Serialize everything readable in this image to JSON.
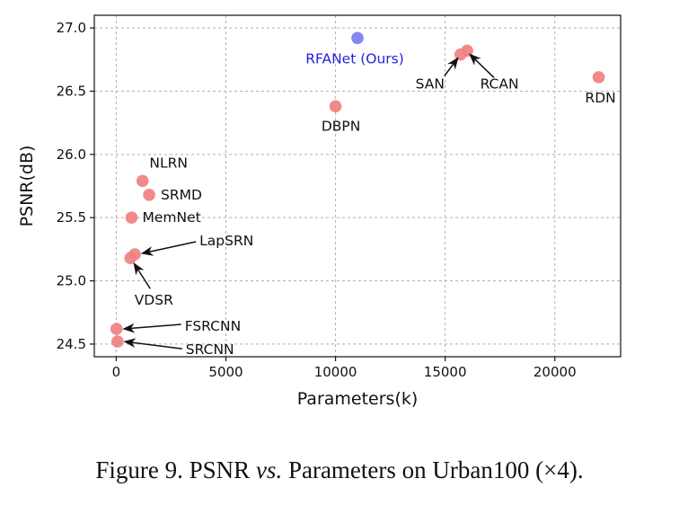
{
  "chart_data": {
    "type": "scatter",
    "xlabel": "Parameters(k)",
    "ylabel": "PSNR(dB)",
    "xlim": [
      -1000,
      23000
    ],
    "ylim": [
      24.4,
      27.1
    ],
    "xticks": [
      "0",
      "5000",
      "10000",
      "15000",
      "20000"
    ],
    "yticks": [
      "24.5",
      "25.0",
      "25.5",
      "26.0",
      "26.5",
      "27.0"
    ],
    "grid": true,
    "points": [
      {
        "label": "RFANet (Ours)",
        "x": 11000,
        "y": 26.92,
        "color": "#7b7cf0",
        "label_color": "#2222dd"
      },
      {
        "label": "RDN",
        "x": 22000,
        "y": 26.61,
        "color": "#f08080",
        "label_color": "#111111"
      },
      {
        "label": "RCAN",
        "x": 16000,
        "y": 26.82,
        "color": "#f08080",
        "label_color": "#111111"
      },
      {
        "label": "SAN",
        "x": 15700,
        "y": 26.79,
        "color": "#f08080",
        "label_color": "#111111"
      },
      {
        "label": "DBPN",
        "x": 10000,
        "y": 26.38,
        "color": "#f08080",
        "label_color": "#111111"
      },
      {
        "label": "NLRN",
        "x": 1200,
        "y": 25.79,
        "color": "#f08080",
        "label_color": "#111111"
      },
      {
        "label": "SRMD",
        "x": 1500,
        "y": 25.68,
        "color": "#f08080",
        "label_color": "#111111"
      },
      {
        "label": "MemNet",
        "x": 700,
        "y": 25.5,
        "color": "#f08080",
        "label_color": "#111111"
      },
      {
        "label": "LapSRN",
        "x": 850,
        "y": 25.21,
        "color": "#f08080",
        "label_color": "#111111"
      },
      {
        "label": "VDSR",
        "x": 650,
        "y": 25.18,
        "color": "#f08080",
        "label_color": "#111111"
      },
      {
        "label": "FSRCNN",
        "x": 12,
        "y": 24.62,
        "color": "#f08080",
        "label_color": "#111111"
      },
      {
        "label": "SRCNN",
        "x": 57,
        "y": 24.52,
        "color": "#f08080",
        "label_color": "#111111"
      }
    ]
  },
  "caption": {
    "prefix": "Figure 9. PSNR ",
    "italic": "vs.",
    "suffix": " Parameters on Urban100 (×4)."
  }
}
